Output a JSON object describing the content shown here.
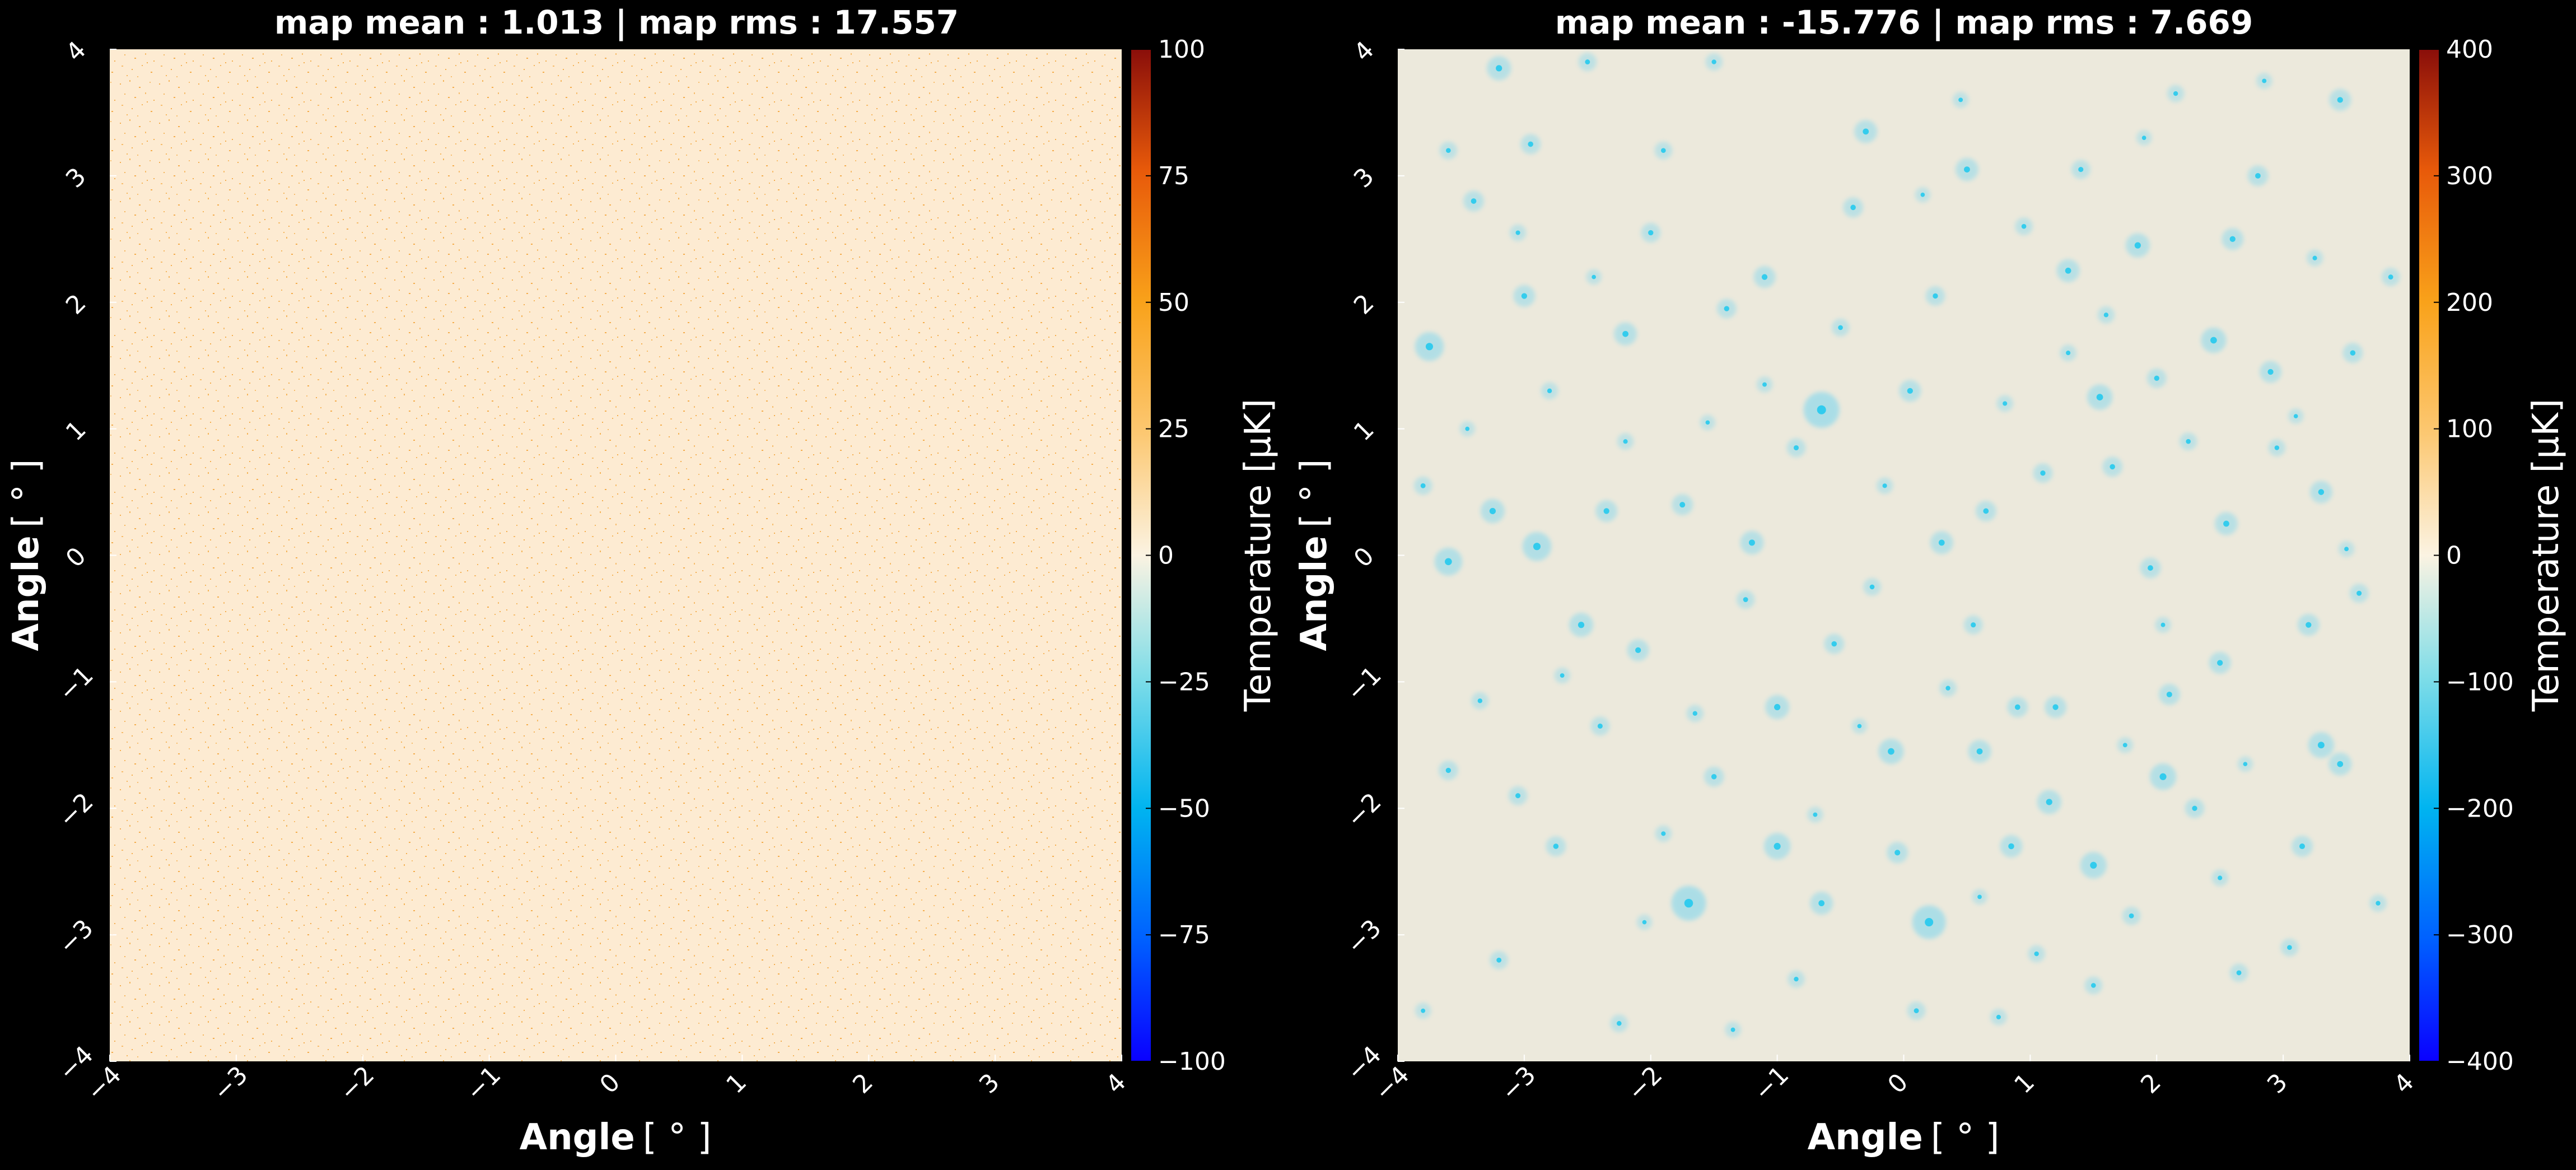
{
  "chart_data": [
    {
      "type": "heatmap",
      "title": "map mean : 1.013 | map rms : 17.557",
      "xlabel": "Angle",
      "ylabel": "Angle",
      "axis_unit": "[ ° ]",
      "xlim": [
        -4,
        4
      ],
      "ylim": [
        -4,
        4
      ],
      "x_ticks": [
        "−4",
        "−3",
        "−2",
        "−1",
        "0",
        "1",
        "2",
        "3",
        "4"
      ],
      "y_ticks": [
        "−4",
        "−3",
        "−2",
        "−1",
        "0",
        "1",
        "2",
        "3",
        "4"
      ],
      "grid": false,
      "colorbar": {
        "label": "Temperature [μK]",
        "range": [
          -100,
          100
        ],
        "ticks": [
          "100",
          "75",
          "50",
          "25",
          "0",
          "−25",
          "−50",
          "−75",
          "−100"
        ]
      },
      "background_color": "#fdebd2",
      "speckle_color": "#f2a236",
      "points": []
    },
    {
      "type": "heatmap",
      "title": "map mean : -15.776 | map rms : 7.669",
      "xlabel": "Angle",
      "ylabel": "Angle",
      "axis_unit": "[ ° ]",
      "xlim": [
        -4,
        4
      ],
      "ylim": [
        -4,
        4
      ],
      "x_ticks": [
        "−4",
        "−3",
        "−2",
        "−1",
        "0",
        "1",
        "2",
        "3",
        "4"
      ],
      "y_ticks": [
        "−4",
        "−3",
        "−2",
        "−1",
        "0",
        "1",
        "2",
        "3",
        "4"
      ],
      "grid": false,
      "colorbar": {
        "label": "Temperature [μK]",
        "range": [
          -400,
          400
        ],
        "ticks": [
          "400",
          "300",
          "200",
          "100",
          "0",
          "−100",
          "−200",
          "−300",
          "−400"
        ]
      },
      "background_color": "#ece9dc",
      "source_color": "#1cc8ee",
      "points": [
        [
          -0.65,
          1.15,
          -210
        ],
        [
          -1.7,
          -2.75,
          -200
        ],
        [
          0.2,
          -2.9,
          -190
        ],
        [
          -3.75,
          1.65,
          -150
        ],
        [
          -2.9,
          0.07,
          -150
        ],
        [
          -3.6,
          -0.05,
          -140
        ],
        [
          -1.0,
          -2.3,
          -130
        ],
        [
          1.5,
          -2.45,
          -130
        ],
        [
          2.05,
          -1.75,
          -130
        ],
        [
          -0.1,
          -1.55,
          -120
        ],
        [
          1.55,
          1.25,
          -120
        ],
        [
          2.45,
          1.7,
          -120
        ],
        [
          3.3,
          -1.5,
          -125
        ],
        [
          -2.55,
          -0.55,
          -110
        ],
        [
          -3.25,
          0.35,
          -110
        ],
        [
          1.15,
          -1.95,
          -110
        ],
        [
          0.5,
          3.05,
          -100
        ],
        [
          -3.2,
          3.85,
          -110
        ],
        [
          -2.2,
          1.75,
          -100
        ],
        [
          -1.2,
          0.1,
          -105
        ],
        [
          0.3,
          0.1,
          -100
        ],
        [
          0.85,
          -2.3,
          -95
        ],
        [
          -0.65,
          -2.75,
          -100
        ],
        [
          2.55,
          0.25,
          -100
        ],
        [
          2.9,
          1.45,
          -90
        ],
        [
          3.45,
          -1.65,
          -100
        ],
        [
          3.2,
          -0.55,
          -90
        ],
        [
          -3.0,
          2.05,
          -90
        ],
        [
          -2.35,
          0.35,
          -90
        ],
        [
          -0.3,
          3.35,
          -100
        ],
        [
          1.85,
          2.45,
          -110
        ],
        [
          1.3,
          2.25,
          -100
        ],
        [
          2.6,
          2.5,
          -90
        ],
        [
          3.45,
          3.6,
          -90
        ],
        [
          -1.0,
          -1.2,
          -110
        ],
        [
          0.6,
          -1.55,
          -100
        ],
        [
          0.05,
          1.3,
          -90
        ],
        [
          3.3,
          0.5,
          -95
        ],
        [
          -2.1,
          -0.75,
          -90
        ],
        [
          -1.1,
          2.2,
          -90
        ],
        [
          1.2,
          -1.2,
          -90
        ],
        [
          2.1,
          -1.1,
          -85
        ],
        [
          -1.75,
          0.4,
          -85
        ],
        [
          3.15,
          -2.3,
          -85
        ],
        [
          0.65,
          0.35,
          -80
        ],
        [
          -3.4,
          2.8,
          -80
        ],
        [
          2.5,
          -0.85,
          -90
        ],
        [
          -0.05,
          -2.35,
          -85
        ],
        [
          -2.75,
          -2.3,
          -75
        ],
        [
          1.95,
          -0.1,
          -80
        ],
        [
          -2.95,
          3.25,
          -75
        ],
        [
          -0.4,
          2.75,
          -75
        ],
        [
          1.65,
          0.7,
          -75
        ],
        [
          0.9,
          -1.2,
          -80
        ],
        [
          -1.4,
          1.95,
          -70
        ],
        [
          2.8,
          3.0,
          -80
        ],
        [
          -3.6,
          -1.7,
          -70
        ],
        [
          -0.55,
          -0.7,
          -75
        ],
        [
          1.1,
          0.65,
          -70
        ],
        [
          -2.0,
          2.55,
          -70
        ],
        [
          0.25,
          2.05,
          -70
        ],
        [
          3.55,
          1.6,
          -75
        ],
        [
          -1.5,
          -1.75,
          -75
        ],
        [
          2.3,
          -2.0,
          -70
        ],
        [
          -3.05,
          -1.9,
          -65
        ],
        [
          -0.85,
          0.85,
          -65
        ],
        [
          1.4,
          3.05,
          -65
        ],
        [
          2.0,
          1.4,
          -70
        ],
        [
          -2.4,
          -1.35,
          -65
        ],
        [
          0.55,
          -0.55,
          -65
        ],
        [
          3.6,
          -0.3,
          -65
        ],
        [
          -3.8,
          0.55,
          -60
        ],
        [
          -1.25,
          -0.35,
          -60
        ],
        [
          0.1,
          -3.6,
          -60
        ],
        [
          1.8,
          -2.85,
          -60
        ],
        [
          -2.5,
          3.9,
          -60
        ],
        [
          3.85,
          2.2,
          -60
        ],
        [
          -3.2,
          -3.2,
          -60
        ],
        [
          2.65,
          -3.3,
          -60
        ],
        [
          -1.9,
          3.2,
          -55
        ],
        [
          0.95,
          2.6,
          -55
        ],
        [
          -0.25,
          -0.25,
          -55
        ],
        [
          2.25,
          0.9,
          -55
        ],
        [
          -3.6,
          3.2,
          -55
        ],
        [
          1.5,
          -3.4,
          -55
        ],
        [
          -2.25,
          -3.7,
          -55
        ],
        [
          3.05,
          -3.1,
          -55
        ],
        [
          -0.5,
          1.8,
          -55
        ],
        [
          1.6,
          1.9,
          -50
        ],
        [
          -1.65,
          -1.25,
          -50
        ],
        [
          0.35,
          -1.05,
          -50
        ],
        [
          2.95,
          0.85,
          -50
        ],
        [
          -2.8,
          1.3,
          -50
        ],
        [
          -0.85,
          -3.35,
          -50
        ],
        [
          1.05,
          -3.15,
          -50
        ],
        [
          -3.35,
          -1.15,
          -50
        ],
        [
          2.15,
          3.65,
          -50
        ],
        [
          -1.5,
          3.9,
          -50
        ],
        [
          3.75,
          -2.75,
          -50
        ],
        [
          -0.15,
          0.55,
          -45
        ],
        [
          1.3,
          1.6,
          -45
        ],
        [
          -2.2,
          0.9,
          -45
        ],
        [
          0.75,
          -3.65,
          -45
        ],
        [
          2.5,
          -2.55,
          -45
        ],
        [
          -3.05,
          2.55,
          -45
        ],
        [
          -1.9,
          -2.2,
          -45
        ],
        [
          3.25,
          2.35,
          -45
        ],
        [
          0.8,
          1.2,
          -45
        ],
        [
          -1.1,
          1.35,
          -40
        ],
        [
          2.05,
          -0.55,
          -40
        ],
        [
          -2.7,
          -0.95,
          -40
        ],
        [
          0.45,
          3.6,
          -40
        ],
        [
          -0.7,
          -2.05,
          -40
        ],
        [
          1.75,
          -1.5,
          -40
        ],
        [
          3.5,
          0.05,
          -40
        ],
        [
          -3.8,
          -3.6,
          -40
        ],
        [
          2.85,
          3.75,
          -40
        ],
        [
          -1.35,
          -3.75,
          -40
        ],
        [
          0.15,
          2.85,
          -35
        ],
        [
          -2.45,
          2.2,
          -35
        ],
        [
          1.9,
          3.3,
          -35
        ],
        [
          -0.35,
          -1.35,
          -35
        ],
        [
          2.7,
          -1.65,
          -35
        ],
        [
          -1.55,
          1.05,
          -35
        ],
        [
          3.1,
          1.1,
          -35
        ],
        [
          -3.45,
          1.0,
          -35
        ],
        [
          0.6,
          -2.7,
          -35
        ],
        [
          -2.05,
          -2.9,
          -35
        ]
      ]
    }
  ]
}
